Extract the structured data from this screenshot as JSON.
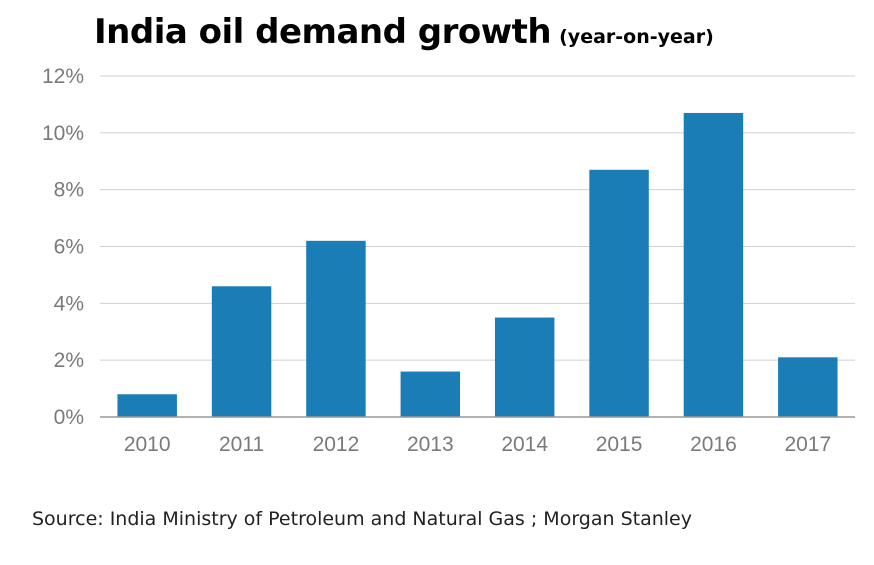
{
  "chart_data": {
    "type": "bar",
    "title": "India oil demand growth",
    "subtitle": "(year-on-year)",
    "xlabel": "",
    "ylabel": "",
    "categories": [
      "2010",
      "2011",
      "2012",
      "2013",
      "2014",
      "2015",
      "2016",
      "2017"
    ],
    "values": [
      0.8,
      4.6,
      6.2,
      1.6,
      3.5,
      8.7,
      10.7,
      2.1
    ],
    "ylim": [
      0,
      12
    ],
    "yticks": [
      0,
      2,
      4,
      6,
      8,
      10,
      12
    ],
    "ytick_labels": [
      "0%",
      "2%",
      "4%",
      "6%",
      "8%",
      "10%",
      "12%"
    ],
    "value_unit": "%",
    "grid": true,
    "bar_color": "#1a7db6",
    "grid_color": "#d0d0d0",
    "axis_color": "#999999",
    "tick_label_color": "#7a7a7a"
  },
  "source": "Source: India Ministry of Petroleum and Natural Gas ; Morgan Stanley"
}
